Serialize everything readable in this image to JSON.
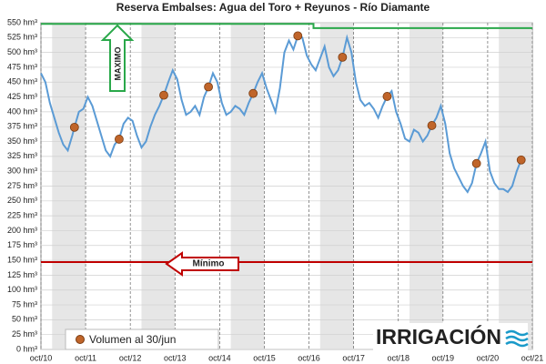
{
  "chart_data": {
    "type": "line",
    "title": "Reserva Embalses: Agua del Toro + Reyunos - Río Diamante",
    "xlim": [
      2010.75,
      2021.75
    ],
    "xticks": [
      {
        "value": 2010.75,
        "label": "oct/10"
      },
      {
        "value": 2011.75,
        "label": "oct/11"
      },
      {
        "value": 2012.75,
        "label": "oct/12"
      },
      {
        "value": 2013.75,
        "label": "oct/13"
      },
      {
        "value": 2014.75,
        "label": "oct/14"
      },
      {
        "value": 2015.75,
        "label": "oct/15"
      },
      {
        "value": 2016.75,
        "label": "oct/16"
      },
      {
        "value": 2017.75,
        "label": "oct/17"
      },
      {
        "value": 2018.75,
        "label": "oct/18"
      },
      {
        "value": 2019.75,
        "label": "oct/19"
      },
      {
        "value": 2020.75,
        "label": "oct/20"
      },
      {
        "value": 2021.75,
        "label": "oct/21"
      }
    ],
    "ylim": [
      0,
      550
    ],
    "yticks": [
      {
        "value": 0,
        "label": "0 hm³"
      },
      {
        "value": 25,
        "label": "25 hm³"
      },
      {
        "value": 50,
        "label": "50 hm³"
      },
      {
        "value": 75,
        "label": "75 hm³"
      },
      {
        "value": 100,
        "label": "100 hm³"
      },
      {
        "value": 125,
        "label": "125 hm³"
      },
      {
        "value": 150,
        "label": "150 hm³"
      },
      {
        "value": 175,
        "label": "175 hm³"
      },
      {
        "value": 200,
        "label": "200 hm³"
      },
      {
        "value": 225,
        "label": "225 hm³"
      },
      {
        "value": 250,
        "label": "250 hm³"
      },
      {
        "value": 275,
        "label": "275 hm³"
      },
      {
        "value": 300,
        "label": "300 hm³"
      },
      {
        "value": 325,
        "label": "325 hm³"
      },
      {
        "value": 350,
        "label": "350 hm³"
      },
      {
        "value": 375,
        "label": "375 hm³"
      },
      {
        "value": 400,
        "label": "400 hm³"
      },
      {
        "value": 425,
        "label": "425 hm³"
      },
      {
        "value": 450,
        "label": "450 hm³"
      },
      {
        "value": 475,
        "label": "475 hm³"
      },
      {
        "value": 500,
        "label": "500 hm³"
      },
      {
        "value": 525,
        "label": "525 hm³"
      },
      {
        "value": 550,
        "label": "550 hm³"
      }
    ],
    "grid": true,
    "series": [
      {
        "color": "#5b9bd5",
        "marker": "none",
        "x": [
          2010.75,
          2010.85,
          2010.95,
          2011.05,
          2011.15,
          2011.25,
          2011.35,
          2011.45,
          2011.5,
          2011.6,
          2011.7,
          2011.8,
          2011.9,
          2012.0,
          2012.1,
          2012.2,
          2012.3,
          2012.4,
          2012.5,
          2012.6,
          2012.7,
          2012.8,
          2012.9,
          2013.0,
          2013.1,
          2013.2,
          2013.3,
          2013.4,
          2013.5,
          2013.6,
          2013.7,
          2013.8,
          2013.9,
          2014.0,
          2014.1,
          2014.2,
          2014.3,
          2014.4,
          2014.5,
          2014.6,
          2014.7,
          2014.8,
          2014.9,
          2015.0,
          2015.1,
          2015.2,
          2015.3,
          2015.4,
          2015.5,
          2015.6,
          2015.7,
          2015.8,
          2015.9,
          2016.0,
          2016.1,
          2016.2,
          2016.3,
          2016.4,
          2016.5,
          2016.6,
          2016.7,
          2016.8,
          2016.9,
          2017.0,
          2017.1,
          2017.2,
          2017.3,
          2017.4,
          2017.5,
          2017.6,
          2017.7,
          2017.8,
          2017.9,
          2018.0,
          2018.1,
          2018.2,
          2018.3,
          2018.4,
          2018.5,
          2018.6,
          2018.7,
          2018.8,
          2018.9,
          2019.0,
          2019.1,
          2019.2,
          2019.3,
          2019.4,
          2019.5,
          2019.6,
          2019.7,
          2019.8,
          2019.9,
          2020.0,
          2020.1,
          2020.2,
          2020.3,
          2020.4,
          2020.5,
          2020.6,
          2020.7,
          2020.8,
          2020.9,
          2021.0,
          2021.1,
          2021.2,
          2021.3,
          2021.4,
          2021.5
        ],
        "values": [
          465,
          450,
          415,
          390,
          365,
          345,
          335,
          360,
          374,
          400,
          405,
          425,
          410,
          385,
          360,
          335,
          325,
          345,
          354,
          380,
          390,
          385,
          360,
          340,
          350,
          375,
          395,
          410,
          428,
          450,
          470,
          455,
          420,
          395,
          400,
          410,
          395,
          425,
          442,
          465,
          450,
          415,
          395,
          400,
          410,
          405,
          395,
          415,
          431,
          450,
          465,
          440,
          420,
          400,
          440,
          500,
          520,
          505,
          528,
          525,
          495,
          480,
          470,
          490,
          510,
          475,
          460,
          470,
          492,
          525,
          500,
          450,
          420,
          410,
          415,
          405,
          390,
          410,
          426,
          435,
          400,
          380,
          355,
          350,
          370,
          365,
          350,
          360,
          377,
          390,
          410,
          380,
          330,
          305,
          290,
          275,
          265,
          280,
          313,
          330,
          350,
          300,
          280,
          270,
          270,
          265,
          275,
          300,
          319
        ]
      },
      {
        "name": "Volumen al 30/jun",
        "color": "#c0652a",
        "marker": "circle",
        "x": [
          2011.5,
          2012.5,
          2013.5,
          2014.5,
          2015.5,
          2016.5,
          2017.5,
          2018.5,
          2019.5,
          2020.5,
          2021.5
        ],
        "values": [
          374,
          354,
          428,
          442,
          431,
          528,
          492,
          426,
          377,
          313,
          319
        ]
      },
      {
        "color": "#2aa84a",
        "marker": "none",
        "x": [
          2010.75,
          2016.85,
          2016.85,
          2021.75
        ],
        "values": [
          548,
          548,
          541,
          541
        ]
      },
      {
        "color": "#c00000",
        "marker": "none",
        "x": [
          2010.75,
          2021.75
        ],
        "values": [
          147,
          147
        ]
      }
    ],
    "annotations": [
      "MAXIMO",
      "Mínimo"
    ],
    "logo": "IRRIGACIÓN"
  }
}
